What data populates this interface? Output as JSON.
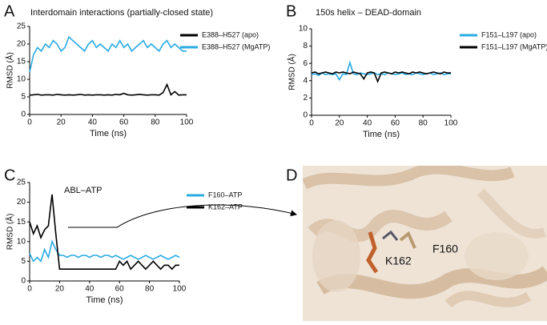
{
  "chart_data": [
    {
      "type": "line",
      "panel": "A",
      "title": "Interdomain interactions (partially-closed state)",
      "xlabel": "Time (ns)",
      "ylabel": "RMSD (Å)",
      "xlim": [
        0,
        100
      ],
      "xticks": [
        0,
        20,
        40,
        60,
        80,
        100
      ],
      "ylim": [
        0,
        25
      ],
      "yticks": [
        0,
        5,
        10,
        15,
        20,
        25
      ],
      "x": [
        0,
        2.5,
        5,
        7.5,
        10,
        12.5,
        15,
        17.5,
        20,
        22.5,
        25,
        27.5,
        30,
        32.5,
        35,
        37.5,
        40,
        42.5,
        45,
        47.5,
        50,
        52.5,
        55,
        57.5,
        60,
        62.5,
        65,
        67.5,
        70,
        72.5,
        75,
        77.5,
        80,
        82.5,
        85,
        87.5,
        90,
        92.5,
        95,
        97.5,
        100
      ],
      "series": [
        {
          "name": "E388–H527 (apo)",
          "color": "#000000",
          "values": [
            5.5,
            5.6,
            5.7,
            5.5,
            5.6,
            5.6,
            5.5,
            5.7,
            5.6,
            5.5,
            5.6,
            5.5,
            5.6,
            5.7,
            5.5,
            5.6,
            5.5,
            5.6,
            5.6,
            5.5,
            5.6,
            5.5,
            5.7,
            5.6,
            6.0,
            5.6,
            5.5,
            5.6,
            5.7,
            5.6,
            5.5,
            5.6,
            5.6,
            5.5,
            6.2,
            8.5,
            5.6,
            6.5,
            5.5,
            5.6,
            5.6
          ]
        },
        {
          "name": "E388–H527 (MgATP)",
          "color": "#29abe2",
          "values": [
            12,
            17,
            19,
            18,
            20,
            19,
            21,
            20,
            18,
            19,
            22,
            21,
            20,
            19,
            18,
            20,
            21,
            19,
            20,
            19,
            18,
            20,
            19,
            21,
            19,
            20,
            18,
            19,
            20,
            21,
            19,
            20,
            19,
            18,
            20,
            21,
            19,
            20,
            19,
            18,
            18
          ]
        }
      ]
    },
    {
      "type": "line",
      "panel": "B",
      "title": "150s helix – DEAD-domain",
      "xlabel": "Time (ns)",
      "ylabel": "RMSD (Å)",
      "xlim": [
        0,
        100
      ],
      "xticks": [
        0,
        20,
        40,
        60,
        80,
        100
      ],
      "ylim": [
        0,
        10
      ],
      "yticks": [
        0,
        2,
        4,
        6,
        8,
        10
      ],
      "x": [
        0,
        2.5,
        5,
        7.5,
        10,
        12.5,
        15,
        17.5,
        20,
        22.5,
        25,
        27.5,
        30,
        32.5,
        35,
        37.5,
        40,
        42.5,
        45,
        47.5,
        50,
        52.5,
        55,
        57.5,
        60,
        62.5,
        65,
        67.5,
        70,
        72.5,
        75,
        77.5,
        80,
        82.5,
        85,
        87.5,
        90,
        92.5,
        95,
        97.5,
        100
      ],
      "series": [
        {
          "name": "F151–L197 (apo)",
          "color": "#29abe2",
          "values": [
            4.7,
            4.8,
            4.6,
            4.9,
            4.7,
            4.8,
            4.7,
            4.8,
            4.1,
            4.8,
            4.7,
            6.1,
            4.8,
            4.7,
            4.9,
            4.8,
            4.7,
            4.8,
            4.9,
            4.7,
            4.8,
            4.7,
            4.9,
            4.8,
            4.7,
            4.8,
            4.9,
            4.7,
            4.8,
            4.7,
            4.9,
            4.8,
            4.7,
            4.8,
            4.9,
            4.7,
            4.8,
            4.9,
            4.7,
            4.8,
            4.8
          ]
        },
        {
          "name": "F151–L197 (MgATP)",
          "color": "#000000",
          "values": [
            4.9,
            5.0,
            4.8,
            4.9,
            5.0,
            4.9,
            4.8,
            5.0,
            4.9,
            5.0,
            4.9,
            4.8,
            5.0,
            4.9,
            4.8,
            4.2,
            4.9,
            5.0,
            4.9,
            3.9,
            4.9,
            5.0,
            4.9,
            4.8,
            5.0,
            4.9,
            5.0,
            4.9,
            4.8,
            5.0,
            4.9,
            5.0,
            4.9,
            4.8,
            4.9,
            5.0,
            4.9,
            4.8,
            5.0,
            4.9,
            4.9
          ]
        }
      ]
    },
    {
      "type": "line",
      "panel": "C",
      "title": "ABL–ATP",
      "xlabel": "Time (ns)",
      "ylabel": "RMSD (Å)",
      "xlim": [
        0,
        100
      ],
      "xticks": [
        0,
        20,
        40,
        60,
        80,
        100
      ],
      "ylim": [
        0,
        25
      ],
      "yticks": [
        0,
        5,
        10,
        15,
        20,
        25
      ],
      "x": [
        0,
        2.5,
        5,
        7.5,
        10,
        12.5,
        15,
        17.5,
        20,
        22.5,
        25,
        27.5,
        30,
        32.5,
        35,
        37.5,
        40,
        42.5,
        45,
        47.5,
        50,
        52.5,
        55,
        57.5,
        60,
        62.5,
        65,
        67.5,
        70,
        72.5,
        75,
        77.5,
        80,
        82.5,
        85,
        87.5,
        90,
        92.5,
        95,
        97.5,
        100
      ],
      "series": [
        {
          "name": "F160–ATP",
          "color": "#29abe2",
          "values": [
            7,
            5,
            6,
            5,
            8,
            6,
            10,
            8,
            6.5,
            6.5,
            6,
            6.5,
            6.5,
            6,
            6.5,
            6.5,
            6,
            6.5,
            6.5,
            6,
            6.5,
            6.5,
            6,
            6.5,
            6,
            5.5,
            6,
            6.5,
            6,
            5.5,
            6,
            6.5,
            6,
            5.5,
            6,
            6.5,
            6,
            5.5,
            6,
            6.5,
            6
          ]
        },
        {
          "name": "K162–ATP",
          "color": "#000000",
          "values": [
            15,
            12,
            14,
            11,
            13,
            14,
            22,
            12,
            3,
            3,
            3,
            3,
            3,
            3,
            3,
            3,
            3,
            3,
            3,
            3,
            3,
            3,
            3,
            3,
            5,
            4,
            5,
            3,
            4,
            5,
            4,
            3,
            4,
            5,
            4,
            3,
            4,
            4,
            3,
            4,
            4
          ]
        }
      ]
    }
  ],
  "panel_d": {
    "panel": "D",
    "labels": [
      "F160",
      "K162"
    ]
  }
}
